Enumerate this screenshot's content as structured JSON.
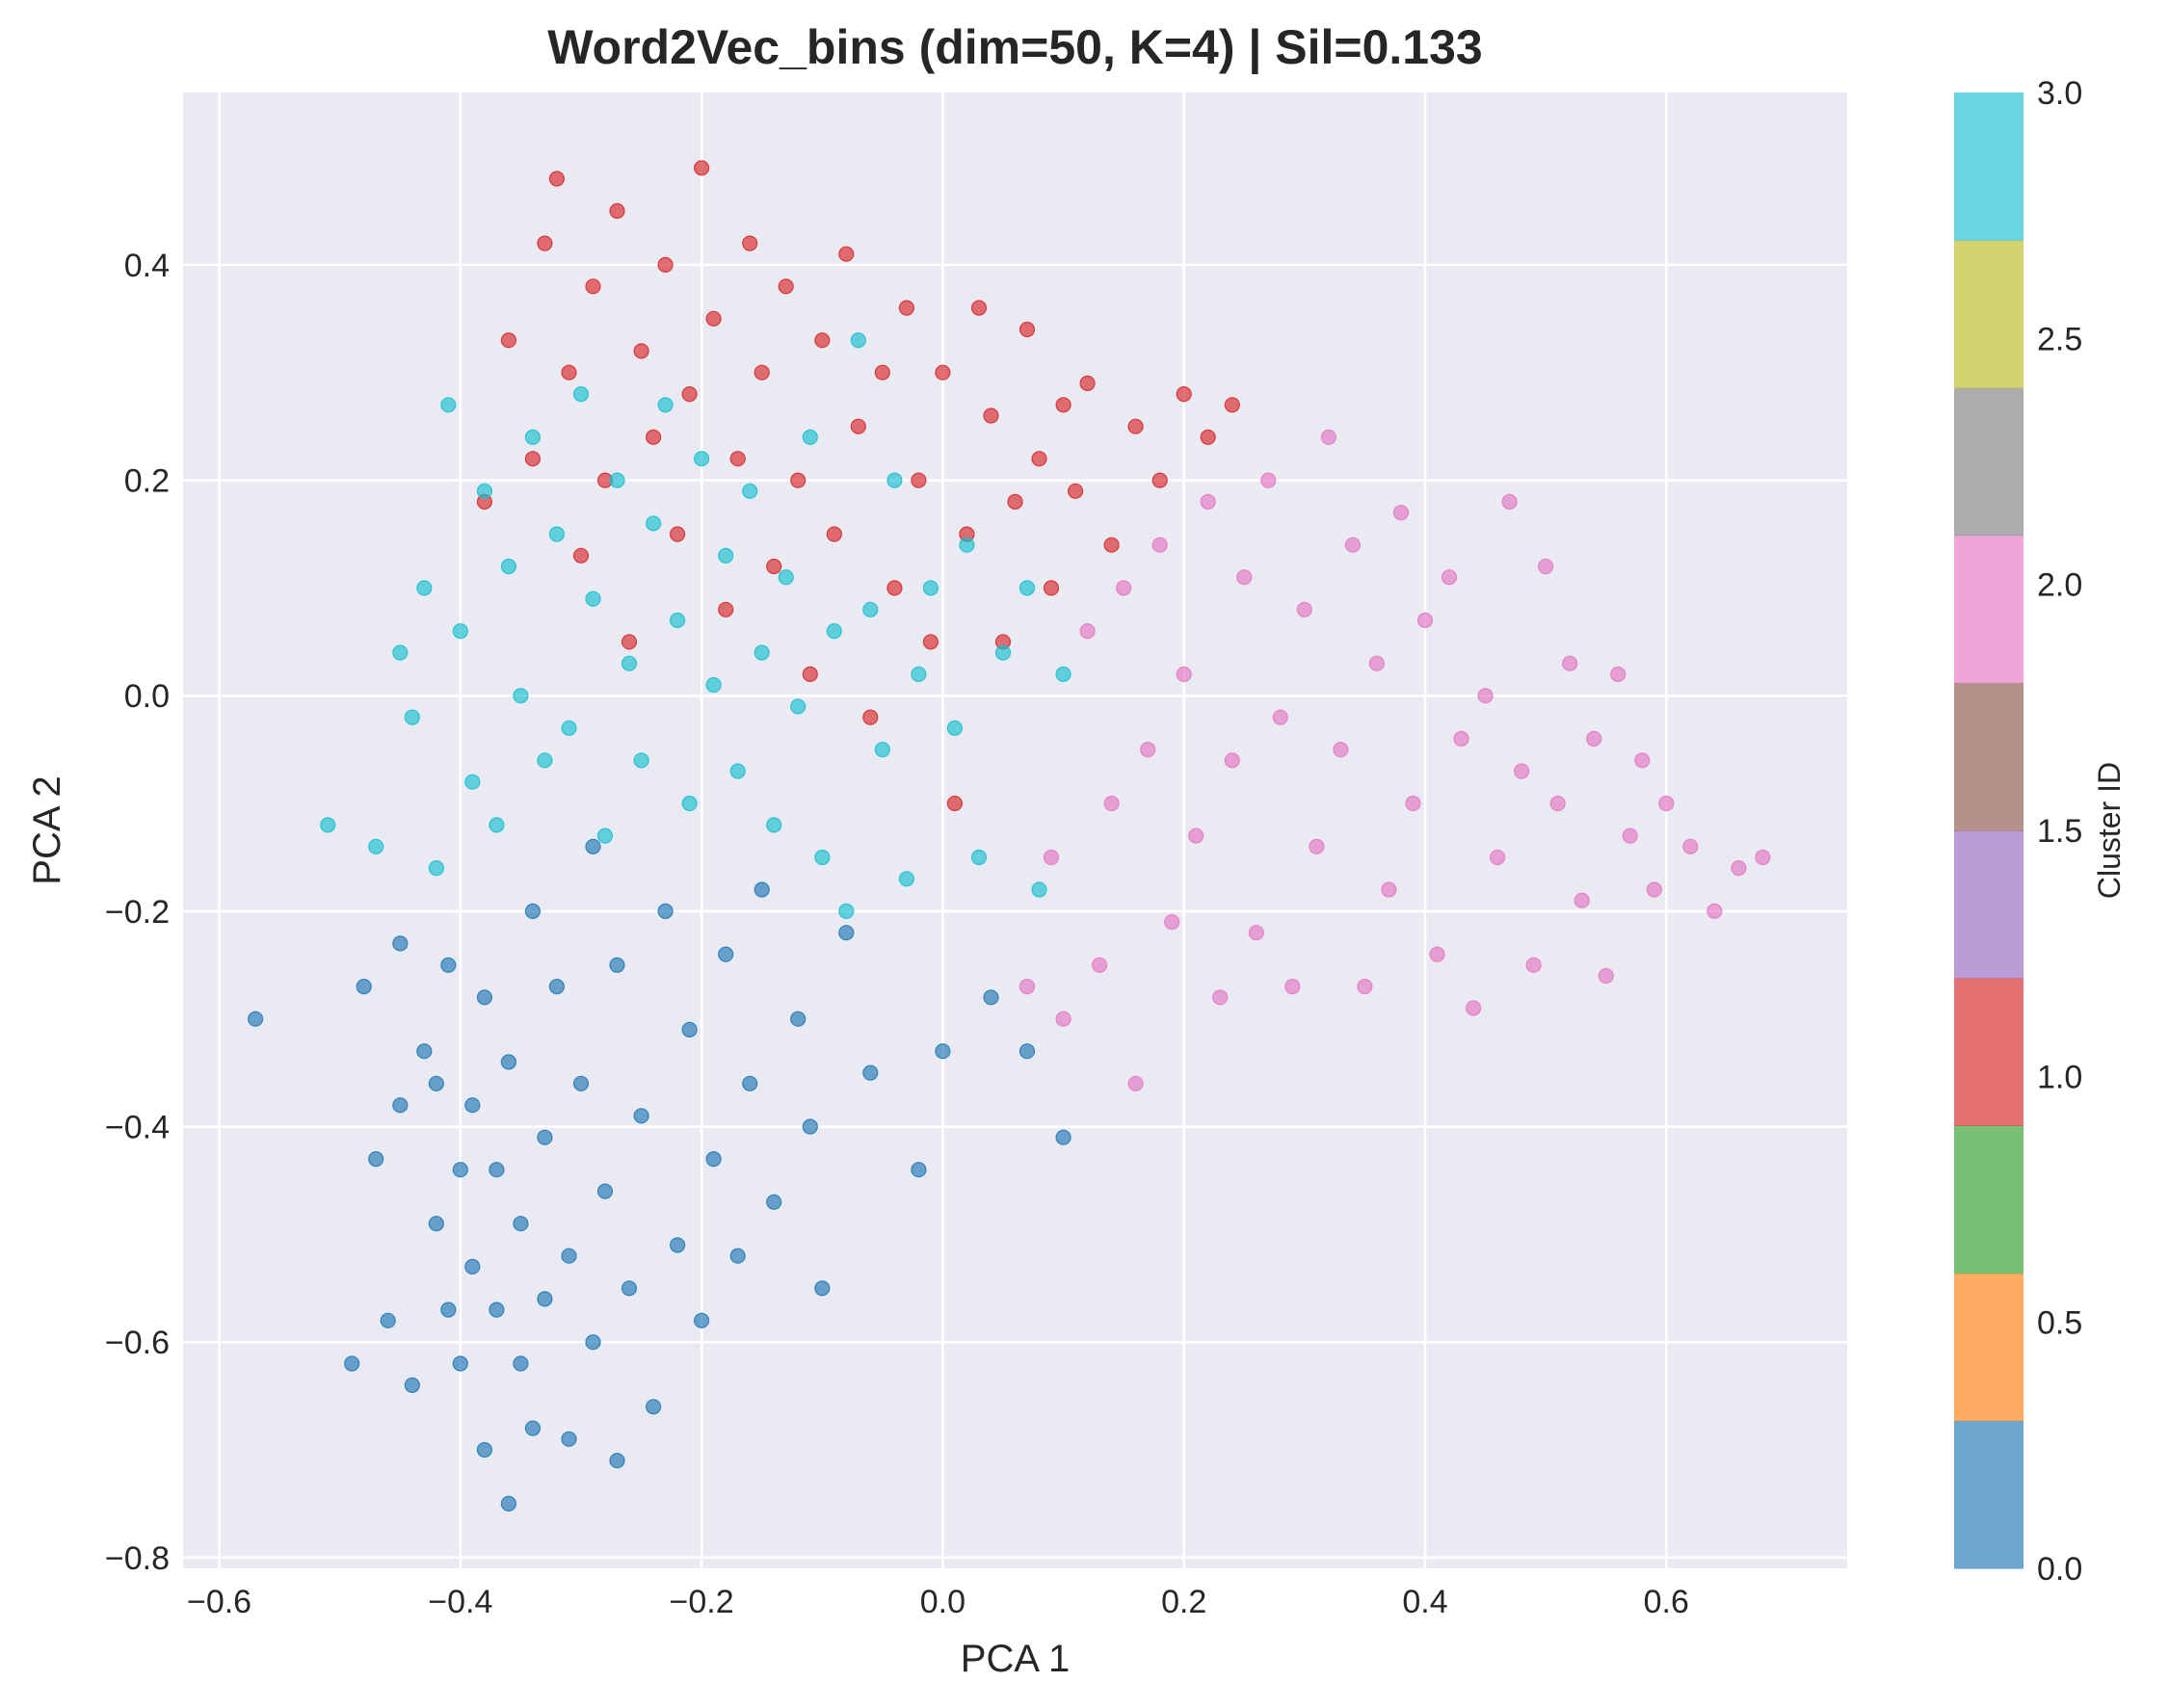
{
  "chart_data": {
    "type": "scatter",
    "title": "Word2Vec_bins (dim=50, K=4) | Sil=0.133",
    "xlabel": "PCA 1",
    "ylabel": "PCA 2",
    "xlim": [
      -0.63,
      0.75
    ],
    "ylim": [
      -0.81,
      0.56
    ],
    "xticks": [
      -0.6,
      -0.4,
      -0.2,
      0.0,
      0.2,
      0.4,
      0.6
    ],
    "xtick_labels": [
      "−0.6",
      "−0.4",
      "−0.2",
      "0.0",
      "0.2",
      "0.4",
      "0.6"
    ],
    "yticks": [
      0.4,
      0.2,
      0.0,
      -0.2,
      -0.4,
      -0.6,
      -0.8
    ],
    "ytick_labels": [
      "0.4",
      "0.2",
      "0.0",
      "−0.2",
      "−0.4",
      "−0.6",
      "−0.8"
    ],
    "grid": true,
    "background": "#eaeaf2",
    "colorbar": {
      "label": "Cluster ID",
      "range": [
        0.0,
        3.0
      ],
      "ticks": [
        0.0,
        0.5,
        1.0,
        1.5,
        2.0,
        2.5,
        3.0
      ],
      "tick_labels": [
        "0.0",
        "0.5",
        "1.0",
        "1.5",
        "2.0",
        "2.5",
        "3.0"
      ],
      "colors": [
        "#1f77b4",
        "#ff7f0e",
        "#2ca02c",
        "#d62728",
        "#9467bd",
        "#8c564b",
        "#e377c2",
        "#7f7f7f",
        "#bcbd22",
        "#17becf"
      ],
      "alpha": 0.65
    },
    "series": [
      {
        "cluster": 0,
        "color": "#1f77b4",
        "points": [
          [
            -0.57,
            -0.3
          ],
          [
            -0.49,
            -0.62
          ],
          [
            -0.48,
            -0.27
          ],
          [
            -0.47,
            -0.43
          ],
          [
            -0.46,
            -0.58
          ],
          [
            -0.45,
            -0.38
          ],
          [
            -0.45,
            -0.23
          ],
          [
            -0.44,
            -0.64
          ],
          [
            -0.43,
            -0.33
          ],
          [
            -0.42,
            -0.49
          ],
          [
            -0.42,
            -0.36
          ],
          [
            -0.41,
            -0.57
          ],
          [
            -0.41,
            -0.25
          ],
          [
            -0.4,
            -0.62
          ],
          [
            -0.4,
            -0.44
          ],
          [
            -0.39,
            -0.53
          ],
          [
            -0.39,
            -0.38
          ],
          [
            -0.38,
            -0.7
          ],
          [
            -0.38,
            -0.28
          ],
          [
            -0.37,
            -0.57
          ],
          [
            -0.37,
            -0.44
          ],
          [
            -0.36,
            -0.75
          ],
          [
            -0.36,
            -0.34
          ],
          [
            -0.35,
            -0.62
          ],
          [
            -0.35,
            -0.49
          ],
          [
            -0.34,
            -0.68
          ],
          [
            -0.34,
            -0.2
          ],
          [
            -0.33,
            -0.56
          ],
          [
            -0.33,
            -0.41
          ],
          [
            -0.32,
            -0.27
          ],
          [
            -0.31,
            -0.69
          ],
          [
            -0.31,
            -0.52
          ],
          [
            -0.3,
            -0.36
          ],
          [
            -0.29,
            -0.6
          ],
          [
            -0.29,
            -0.14
          ],
          [
            -0.28,
            -0.46
          ],
          [
            -0.27,
            -0.71
          ],
          [
            -0.27,
            -0.25
          ],
          [
            -0.26,
            -0.55
          ],
          [
            -0.25,
            -0.39
          ],
          [
            -0.24,
            -0.66
          ],
          [
            -0.23,
            -0.2
          ],
          [
            -0.22,
            -0.51
          ],
          [
            -0.21,
            -0.31
          ],
          [
            -0.2,
            -0.58
          ],
          [
            -0.19,
            -0.43
          ],
          [
            -0.18,
            -0.24
          ],
          [
            -0.17,
            -0.52
          ],
          [
            -0.16,
            -0.36
          ],
          [
            -0.15,
            -0.18
          ],
          [
            -0.14,
            -0.47
          ],
          [
            -0.12,
            -0.3
          ],
          [
            -0.11,
            -0.4
          ],
          [
            -0.1,
            -0.55
          ],
          [
            -0.08,
            -0.22
          ],
          [
            -0.06,
            -0.35
          ],
          [
            -0.02,
            -0.44
          ],
          [
            0.0,
            -0.33
          ],
          [
            0.04,
            -0.28
          ],
          [
            0.07,
            -0.33
          ],
          [
            0.1,
            -0.41
          ]
        ]
      },
      {
        "cluster": 1,
        "color": "#d62728",
        "points": [
          [
            -0.38,
            0.18
          ],
          [
            -0.36,
            0.33
          ],
          [
            -0.34,
            0.22
          ],
          [
            -0.33,
            0.42
          ],
          [
            -0.32,
            0.48
          ],
          [
            -0.31,
            0.3
          ],
          [
            -0.3,
            0.13
          ],
          [
            -0.29,
            0.38
          ],
          [
            -0.28,
            0.2
          ],
          [
            -0.27,
            0.45
          ],
          [
            -0.26,
            0.05
          ],
          [
            -0.25,
            0.32
          ],
          [
            -0.24,
            0.24
          ],
          [
            -0.23,
            0.4
          ],
          [
            -0.22,
            0.15
          ],
          [
            -0.21,
            0.28
          ],
          [
            -0.2,
            0.49
          ],
          [
            -0.19,
            0.35
          ],
          [
            -0.18,
            0.08
          ],
          [
            -0.17,
            0.22
          ],
          [
            -0.16,
            0.42
          ],
          [
            -0.15,
            0.3
          ],
          [
            -0.14,
            0.12
          ],
          [
            -0.13,
            0.38
          ],
          [
            -0.12,
            0.2
          ],
          [
            -0.11,
            0.02
          ],
          [
            -0.1,
            0.33
          ],
          [
            -0.09,
            0.15
          ],
          [
            -0.08,
            0.41
          ],
          [
            -0.07,
            0.25
          ],
          [
            -0.06,
            -0.02
          ],
          [
            -0.05,
            0.3
          ],
          [
            -0.04,
            0.1
          ],
          [
            -0.03,
            0.36
          ],
          [
            -0.02,
            0.2
          ],
          [
            -0.01,
            0.05
          ],
          [
            0.0,
            0.3
          ],
          [
            0.01,
            -0.1
          ],
          [
            0.02,
            0.15
          ],
          [
            0.03,
            0.36
          ],
          [
            0.04,
            0.26
          ],
          [
            0.05,
            0.05
          ],
          [
            0.06,
            0.18
          ],
          [
            0.07,
            0.34
          ],
          [
            0.08,
            0.22
          ],
          [
            0.09,
            0.1
          ],
          [
            0.1,
            0.27
          ],
          [
            0.11,
            0.19
          ],
          [
            0.12,
            0.29
          ],
          [
            0.14,
            0.14
          ],
          [
            0.16,
            0.25
          ],
          [
            0.18,
            0.2
          ],
          [
            0.2,
            0.28
          ],
          [
            0.22,
            0.24
          ],
          [
            0.24,
            0.27
          ]
        ]
      },
      {
        "cluster": 2,
        "color": "#e377c2",
        "points": [
          [
            0.07,
            -0.27
          ],
          [
            0.09,
            -0.15
          ],
          [
            0.1,
            -0.3
          ],
          [
            0.12,
            0.06
          ],
          [
            0.13,
            -0.25
          ],
          [
            0.14,
            -0.1
          ],
          [
            0.15,
            0.1
          ],
          [
            0.16,
            -0.36
          ],
          [
            0.17,
            -0.05
          ],
          [
            0.18,
            0.14
          ],
          [
            0.19,
            -0.21
          ],
          [
            0.2,
            0.02
          ],
          [
            0.21,
            -0.13
          ],
          [
            0.22,
            0.18
          ],
          [
            0.23,
            -0.28
          ],
          [
            0.24,
            -0.06
          ],
          [
            0.25,
            0.11
          ],
          [
            0.26,
            -0.22
          ],
          [
            0.27,
            0.2
          ],
          [
            0.28,
            -0.02
          ],
          [
            0.29,
            -0.27
          ],
          [
            0.3,
            0.08
          ],
          [
            0.31,
            -0.14
          ],
          [
            0.32,
            0.24
          ],
          [
            0.33,
            -0.05
          ],
          [
            0.34,
            0.14
          ],
          [
            0.35,
            -0.27
          ],
          [
            0.36,
            0.03
          ],
          [
            0.37,
            -0.18
          ],
          [
            0.38,
            0.17
          ],
          [
            0.39,
            -0.1
          ],
          [
            0.4,
            0.07
          ],
          [
            0.41,
            -0.24
          ],
          [
            0.42,
            0.11
          ],
          [
            0.43,
            -0.04
          ],
          [
            0.44,
            -0.29
          ],
          [
            0.45,
            0.0
          ],
          [
            0.46,
            -0.15
          ],
          [
            0.47,
            0.18
          ],
          [
            0.48,
            -0.07
          ],
          [
            0.49,
            -0.25
          ],
          [
            0.5,
            0.12
          ],
          [
            0.51,
            -0.1
          ],
          [
            0.52,
            0.03
          ],
          [
            0.53,
            -0.19
          ],
          [
            0.54,
            -0.04
          ],
          [
            0.55,
            -0.26
          ],
          [
            0.56,
            0.02
          ],
          [
            0.57,
            -0.13
          ],
          [
            0.58,
            -0.06
          ],
          [
            0.59,
            -0.18
          ],
          [
            0.6,
            -0.1
          ],
          [
            0.62,
            -0.14
          ],
          [
            0.64,
            -0.2
          ],
          [
            0.66,
            -0.16
          ],
          [
            0.68,
            -0.15
          ]
        ]
      },
      {
        "cluster": 3,
        "color": "#17becf",
        "points": [
          [
            -0.51,
            -0.12
          ],
          [
            -0.47,
            -0.14
          ],
          [
            -0.45,
            0.04
          ],
          [
            -0.44,
            -0.02
          ],
          [
            -0.43,
            0.1
          ],
          [
            -0.42,
            -0.16
          ],
          [
            -0.41,
            0.27
          ],
          [
            -0.4,
            0.06
          ],
          [
            -0.39,
            -0.08
          ],
          [
            -0.38,
            0.19
          ],
          [
            -0.37,
            -0.12
          ],
          [
            -0.36,
            0.12
          ],
          [
            -0.35,
            0.0
          ],
          [
            -0.34,
            0.24
          ],
          [
            -0.33,
            -0.06
          ],
          [
            -0.32,
            0.15
          ],
          [
            -0.31,
            -0.03
          ],
          [
            -0.3,
            0.28
          ],
          [
            -0.29,
            0.09
          ],
          [
            -0.28,
            -0.13
          ],
          [
            -0.27,
            0.2
          ],
          [
            -0.26,
            0.03
          ],
          [
            -0.25,
            -0.06
          ],
          [
            -0.24,
            0.16
          ],
          [
            -0.23,
            0.27
          ],
          [
            -0.22,
            0.07
          ],
          [
            -0.21,
            -0.1
          ],
          [
            -0.2,
            0.22
          ],
          [
            -0.19,
            0.01
          ],
          [
            -0.18,
            0.13
          ],
          [
            -0.17,
            -0.07
          ],
          [
            -0.16,
            0.19
          ],
          [
            -0.15,
            0.04
          ],
          [
            -0.14,
            -0.12
          ],
          [
            -0.13,
            0.11
          ],
          [
            -0.12,
            -0.01
          ],
          [
            -0.11,
            0.24
          ],
          [
            -0.1,
            -0.15
          ],
          [
            -0.09,
            0.06
          ],
          [
            -0.08,
            -0.2
          ],
          [
            -0.07,
            0.33
          ],
          [
            -0.06,
            0.08
          ],
          [
            -0.05,
            -0.05
          ],
          [
            -0.04,
            0.2
          ],
          [
            -0.03,
            -0.17
          ],
          [
            -0.02,
            0.02
          ],
          [
            -0.01,
            0.1
          ],
          [
            0.01,
            -0.03
          ],
          [
            0.02,
            0.14
          ],
          [
            0.03,
            -0.15
          ],
          [
            0.05,
            0.04
          ],
          [
            0.07,
            0.1
          ],
          [
            0.08,
            -0.18
          ],
          [
            0.1,
            0.02
          ]
        ]
      }
    ]
  }
}
